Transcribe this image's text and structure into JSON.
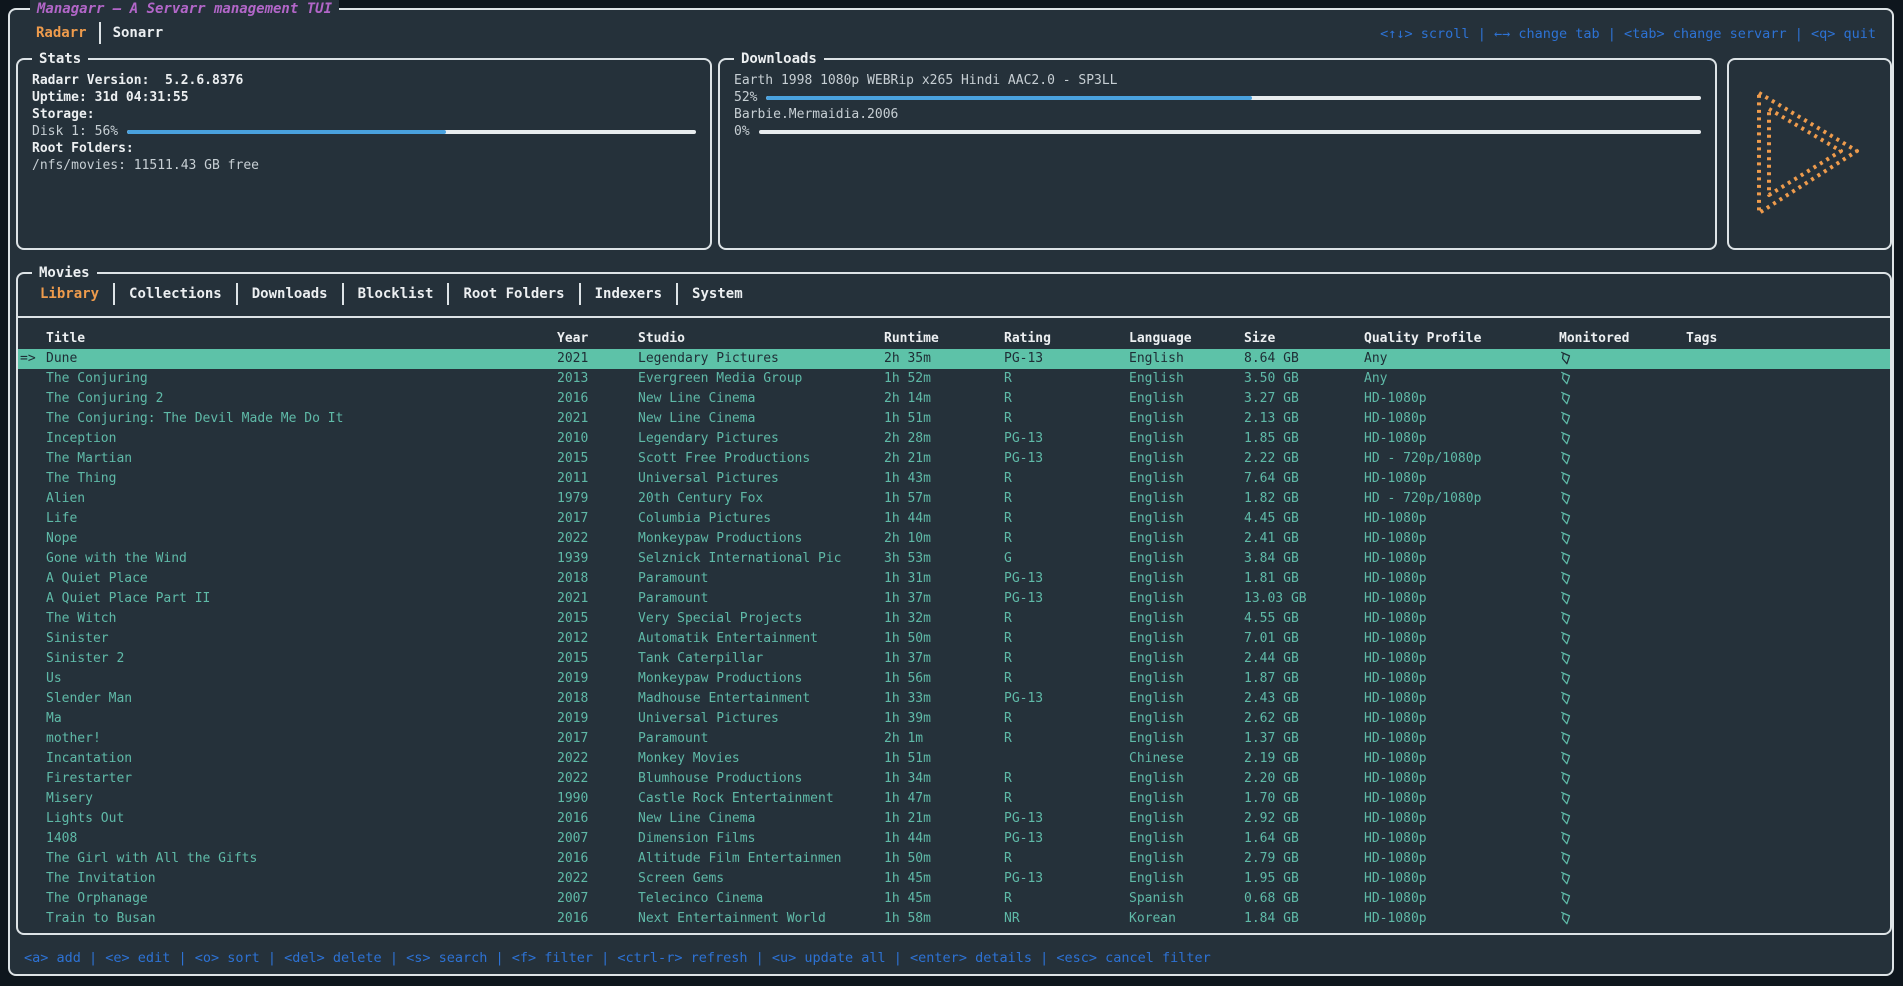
{
  "app": {
    "title": "Managarr – A Servarr management TUI",
    "servarr_tabs": [
      {
        "label": "Radarr",
        "active": true
      },
      {
        "label": "Sonarr",
        "active": false
      }
    ],
    "top_keybindings": [
      {
        "key": "<↑↓>",
        "action": "scroll"
      },
      {
        "key": "←→",
        "action": "change tab"
      },
      {
        "key": "<tab>",
        "action": "change servarr"
      },
      {
        "key": "<q>",
        "action": "quit"
      }
    ]
  },
  "stats": {
    "panel_title": "Stats",
    "version_line": "Radarr Version:  5.2.6.8376",
    "uptime_line": "Uptime: 31d 04:31:55",
    "storage_label": "Storage:",
    "disk_label": "Disk 1: 56%",
    "disk_percent": 56,
    "root_folders_label": "Root Folders:",
    "root_folder_line": "/nfs/movies: 11511.43 GB free"
  },
  "downloads": {
    "panel_title": "Downloads",
    "items": [
      {
        "name": "Earth 1998 1080p WEBRip x265 Hindi AAC2.0 - SP3LL",
        "percent_label": "52%",
        "percent": 52
      },
      {
        "name": "Barbie.Mermaidia.2006",
        "percent_label": "0%",
        "percent": 0
      }
    ]
  },
  "logo": {
    "name": "radarr-play-logo",
    "color": "#ee9b4c"
  },
  "movies": {
    "panel_title": "Movies",
    "tabs": [
      {
        "label": "Library",
        "active": true
      },
      {
        "label": "Collections",
        "active": false
      },
      {
        "label": "Downloads",
        "active": false
      },
      {
        "label": "Blocklist",
        "active": false
      },
      {
        "label": "Root Folders",
        "active": false
      },
      {
        "label": "Indexers",
        "active": false
      },
      {
        "label": "System",
        "active": false
      }
    ],
    "table": {
      "columns": [
        "Title",
        "Year",
        "Studio",
        "Runtime",
        "Rating",
        "Language",
        "Size",
        "Quality Profile",
        "Monitored",
        "Tags"
      ],
      "selection_prefix": "=>",
      "selected_index": 0,
      "rows": [
        {
          "title": "Dune",
          "year": "2021",
          "studio": "Legendary Pictures",
          "runtime": "2h 35m",
          "rating": "PG-13",
          "language": "English",
          "size": "8.64 GB",
          "quality": "Any",
          "monitored": true,
          "tags": ""
        },
        {
          "title": "The Conjuring",
          "year": "2013",
          "studio": "Evergreen Media Group",
          "runtime": "1h 52m",
          "rating": "R",
          "language": "English",
          "size": "3.50 GB",
          "quality": "Any",
          "monitored": true,
          "tags": ""
        },
        {
          "title": "The Conjuring 2",
          "year": "2016",
          "studio": "New Line Cinema",
          "runtime": "2h 14m",
          "rating": "R",
          "language": "English",
          "size": "3.27 GB",
          "quality": "HD-1080p",
          "monitored": true,
          "tags": ""
        },
        {
          "title": "The Conjuring: The Devil Made Me Do It",
          "year": "2021",
          "studio": "New Line Cinema",
          "runtime": "1h 51m",
          "rating": "R",
          "language": "English",
          "size": "2.13 GB",
          "quality": "HD-1080p",
          "monitored": true,
          "tags": ""
        },
        {
          "title": "Inception",
          "year": "2010",
          "studio": "Legendary Pictures",
          "runtime": "2h 28m",
          "rating": "PG-13",
          "language": "English",
          "size": "1.85 GB",
          "quality": "HD-1080p",
          "monitored": true,
          "tags": ""
        },
        {
          "title": "The Martian",
          "year": "2015",
          "studio": "Scott Free Productions",
          "runtime": "2h 21m",
          "rating": "PG-13",
          "language": "English",
          "size": "2.22 GB",
          "quality": "HD - 720p/1080p",
          "monitored": true,
          "tags": ""
        },
        {
          "title": "The Thing",
          "year": "2011",
          "studio": "Universal Pictures",
          "runtime": "1h 43m",
          "rating": "R",
          "language": "English",
          "size": "7.64 GB",
          "quality": "HD-1080p",
          "monitored": true,
          "tags": ""
        },
        {
          "title": "Alien",
          "year": "1979",
          "studio": "20th Century Fox",
          "runtime": "1h 57m",
          "rating": "R",
          "language": "English",
          "size": "1.82 GB",
          "quality": "HD - 720p/1080p",
          "monitored": true,
          "tags": ""
        },
        {
          "title": "Life",
          "year": "2017",
          "studio": "Columbia Pictures",
          "runtime": "1h 44m",
          "rating": "R",
          "language": "English",
          "size": "4.45 GB",
          "quality": "HD-1080p",
          "monitored": true,
          "tags": ""
        },
        {
          "title": "Nope",
          "year": "2022",
          "studio": "Monkeypaw Productions",
          "runtime": "2h 10m",
          "rating": "R",
          "language": "English",
          "size": "2.41 GB",
          "quality": "HD-1080p",
          "monitored": true,
          "tags": ""
        },
        {
          "title": "Gone with the Wind",
          "year": "1939",
          "studio": "Selznick International Pic",
          "runtime": "3h 53m",
          "rating": "G",
          "language": "English",
          "size": "3.84 GB",
          "quality": "HD-1080p",
          "monitored": true,
          "tags": ""
        },
        {
          "title": "A Quiet Place",
          "year": "2018",
          "studio": "Paramount",
          "runtime": "1h 31m",
          "rating": "PG-13",
          "language": "English",
          "size": "1.81 GB",
          "quality": "HD-1080p",
          "monitored": true,
          "tags": ""
        },
        {
          "title": "A Quiet Place Part II",
          "year": "2021",
          "studio": "Paramount",
          "runtime": "1h 37m",
          "rating": "PG-13",
          "language": "English",
          "size": "13.03 GB",
          "quality": "HD-1080p",
          "monitored": true,
          "tags": ""
        },
        {
          "title": "The Witch",
          "year": "2015",
          "studio": "Very Special Projects",
          "runtime": "1h 32m",
          "rating": "R",
          "language": "English",
          "size": "4.55 GB",
          "quality": "HD-1080p",
          "monitored": true,
          "tags": ""
        },
        {
          "title": "Sinister",
          "year": "2012",
          "studio": "Automatik Entertainment",
          "runtime": "1h 50m",
          "rating": "R",
          "language": "English",
          "size": "7.01 GB",
          "quality": "HD-1080p",
          "monitored": true,
          "tags": ""
        },
        {
          "title": "Sinister 2",
          "year": "2015",
          "studio": "Tank Caterpillar",
          "runtime": "1h 37m",
          "rating": "R",
          "language": "English",
          "size": "2.44 GB",
          "quality": "HD-1080p",
          "monitored": true,
          "tags": ""
        },
        {
          "title": "Us",
          "year": "2019",
          "studio": "Monkeypaw Productions",
          "runtime": "1h 56m",
          "rating": "R",
          "language": "English",
          "size": "1.87 GB",
          "quality": "HD-1080p",
          "monitored": true,
          "tags": ""
        },
        {
          "title": "Slender Man",
          "year": "2018",
          "studio": "Madhouse Entertainment",
          "runtime": "1h 33m",
          "rating": "PG-13",
          "language": "English",
          "size": "2.43 GB",
          "quality": "HD-1080p",
          "monitored": true,
          "tags": ""
        },
        {
          "title": "Ma",
          "year": "2019",
          "studio": "Universal Pictures",
          "runtime": "1h 39m",
          "rating": "R",
          "language": "English",
          "size": "2.62 GB",
          "quality": "HD-1080p",
          "monitored": true,
          "tags": ""
        },
        {
          "title": "mother!",
          "year": "2017",
          "studio": "Paramount",
          "runtime": "2h 1m",
          "rating": "R",
          "language": "English",
          "size": "1.37 GB",
          "quality": "HD-1080p",
          "monitored": true,
          "tags": ""
        },
        {
          "title": "Incantation",
          "year": "2022",
          "studio": "Monkey Movies",
          "runtime": "1h 51m",
          "rating": "",
          "language": "Chinese",
          "size": "2.19 GB",
          "quality": "HD-1080p",
          "monitored": true,
          "tags": ""
        },
        {
          "title": "Firestarter",
          "year": "2022",
          "studio": "Blumhouse Productions",
          "runtime": "1h 34m",
          "rating": "R",
          "language": "English",
          "size": "2.20 GB",
          "quality": "HD-1080p",
          "monitored": true,
          "tags": ""
        },
        {
          "title": "Misery",
          "year": "1990",
          "studio": "Castle Rock Entertainment",
          "runtime": "1h 47m",
          "rating": "R",
          "language": "English",
          "size": "1.70 GB",
          "quality": "HD-1080p",
          "monitored": true,
          "tags": ""
        },
        {
          "title": "Lights Out",
          "year": "2016",
          "studio": "New Line Cinema",
          "runtime": "1h 21m",
          "rating": "PG-13",
          "language": "English",
          "size": "2.92 GB",
          "quality": "HD-1080p",
          "monitored": true,
          "tags": ""
        },
        {
          "title": "1408",
          "year": "2007",
          "studio": "Dimension Films",
          "runtime": "1h 44m",
          "rating": "PG-13",
          "language": "English",
          "size": "1.64 GB",
          "quality": "HD-1080p",
          "monitored": true,
          "tags": ""
        },
        {
          "title": "The Girl with All the Gifts",
          "year": "2016",
          "studio": "Altitude Film Entertainmen",
          "runtime": "1h 50m",
          "rating": "R",
          "language": "English",
          "size": "2.79 GB",
          "quality": "HD-1080p",
          "monitored": true,
          "tags": ""
        },
        {
          "title": "The Invitation",
          "year": "2022",
          "studio": "Screen Gems",
          "runtime": "1h 45m",
          "rating": "PG-13",
          "language": "English",
          "size": "1.95 GB",
          "quality": "HD-1080p",
          "monitored": true,
          "tags": ""
        },
        {
          "title": "The Orphanage",
          "year": "2007",
          "studio": "Telecinco Cinema",
          "runtime": "1h 45m",
          "rating": "R",
          "language": "Spanish",
          "size": "0.68 GB",
          "quality": "HD-1080p",
          "monitored": true,
          "tags": ""
        },
        {
          "title": "Train to Busan",
          "year": "2016",
          "studio": "Next Entertainment World",
          "runtime": "1h 58m",
          "rating": "NR",
          "language": "Korean",
          "size": "1.84 GB",
          "quality": "HD-1080p",
          "monitored": true,
          "tags": ""
        }
      ]
    }
  },
  "bottom_keybindings": [
    {
      "key": "<a>",
      "action": "add"
    },
    {
      "key": "<e>",
      "action": "edit"
    },
    {
      "key": "<o>",
      "action": "sort"
    },
    {
      "key": "<del>",
      "action": "delete"
    },
    {
      "key": "<s>",
      "action": "search"
    },
    {
      "key": "<f>",
      "action": "filter"
    },
    {
      "key": "<ctrl-r>",
      "action": "refresh"
    },
    {
      "key": "<u>",
      "action": "update all"
    },
    {
      "key": "<enter>",
      "action": "details"
    },
    {
      "key": "<esc>",
      "action": "cancel filter"
    }
  ],
  "colors": {
    "accent_orange": "#ee9b4c",
    "accent_purple": "#b266c8",
    "keybinding_blue": "#2d72d4",
    "row_teal": "#5fbaa8",
    "selected_row_bg": "#5dc2a8",
    "progress_blue": "#49a1de",
    "panel_bg": "#25313a",
    "border": "#dde3e6"
  }
}
